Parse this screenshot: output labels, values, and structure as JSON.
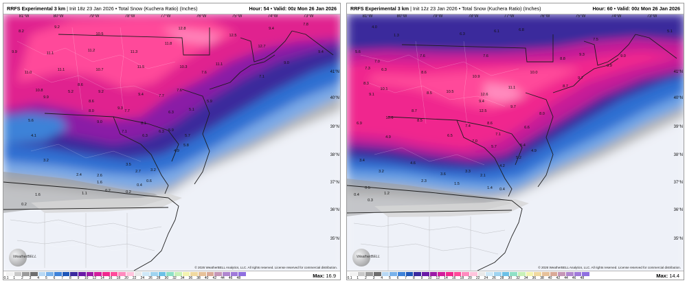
{
  "colorbar": {
    "values": [
      "0.1",
      "1",
      "2",
      "3",
      "4",
      "5",
      "6",
      "7",
      "8",
      "9",
      "10",
      "12",
      "14",
      "16",
      "18",
      "20",
      "22",
      "24",
      "26",
      "28",
      "30",
      "32",
      "34",
      "36",
      "38",
      "40",
      "42",
      "44",
      "46",
      "48"
    ],
    "colors": [
      "#f2f2f2",
      "#c8c8c8",
      "#9b9b9b",
      "#6e6e6e",
      "#b8d8f4",
      "#79b2ea",
      "#3e82d8",
      "#1e56b8",
      "#3b2a9e",
      "#6a1aa6",
      "#9b1ba6",
      "#d21e9c",
      "#f0288e",
      "#ff4a9a",
      "#ff8bbe",
      "#ffc4dc",
      "#e9e9e9",
      "#cfe8f7",
      "#9fd3ef",
      "#6cc0e6",
      "#8fe0c6",
      "#c8f0b8",
      "#f3f3b0",
      "#f0d9a0",
      "#e6c19a",
      "#d9aa98",
      "#c597b7",
      "#b087cf",
      "#a07ad9",
      "#8f6fe0"
    ]
  },
  "panels": [
    {
      "title_bold": "RRFS Experimental 3 km",
      "title_rest": " | Init 18z 23 Jan 2026 • Total Snow (Kuchera Ratio) (Inches)",
      "hour_label": "Hour: 54",
      "valid_label": "Valid: 00z Mon 26 Jan 2026",
      "max_label": "Max:",
      "max_value": "16.9",
      "copyright": "© 2026 WeatherBELL Analytics, LLC. All rights reserved. License reserved for commercial distribution.",
      "logo": "WeatherBELL",
      "lats": [
        "41°N",
        "40°N",
        "39°N",
        "38°N",
        "37°N",
        "36°N",
        "35°N"
      ],
      "lons": [
        "81°W",
        "80°W",
        "79°W",
        "78°W",
        "77°W",
        "76°W",
        "75°W",
        "74°W",
        "73°W"
      ],
      "values": [
        {
          "t": "8.2"
        },
        {
          "t": "9.2"
        },
        {
          "t": "10.5"
        },
        {
          "t": "12.8"
        },
        {
          "t": "12.5"
        },
        {
          "t": "9.4"
        },
        {
          "t": "7.8"
        },
        {
          "t": "9.9"
        },
        {
          "t": "11.1"
        },
        {
          "t": "11.2"
        },
        {
          "t": "11.3"
        },
        {
          "t": "11.8"
        },
        {
          "t": "12.7"
        },
        {
          "t": "9.4"
        },
        {
          "t": "11.0"
        },
        {
          "t": "11.1"
        },
        {
          "t": "10.7"
        },
        {
          "t": "11.5"
        },
        {
          "t": "10.3"
        },
        {
          "t": "11.1"
        },
        {
          "t": "9.0"
        },
        {
          "t": "10.8"
        },
        {
          "t": "9.2"
        },
        {
          "t": "9.4"
        },
        {
          "t": "8.6"
        },
        {
          "t": "7.7"
        },
        {
          "t": "7.6"
        },
        {
          "t": "7.1"
        },
        {
          "t": "9.9"
        },
        {
          "t": "7.7"
        },
        {
          "t": "5.2"
        },
        {
          "t": "8.6"
        },
        {
          "t": "7.6"
        },
        {
          "t": "6.3"
        },
        {
          "t": "5.9"
        },
        {
          "t": "5.6"
        },
        {
          "t": "8.0"
        },
        {
          "t": "9.3"
        },
        {
          "t": "8.1"
        },
        {
          "t": "6.3"
        },
        {
          "t": "5.1"
        },
        {
          "t": "5.7"
        },
        {
          "t": "4.1"
        },
        {
          "t": "9.0"
        },
        {
          "t": "7.1"
        },
        {
          "t": "6.3"
        },
        {
          "t": "5.9"
        },
        {
          "t": "5.8"
        },
        {
          "t": "3.2"
        },
        {
          "t": "2.6"
        },
        {
          "t": "3.5"
        },
        {
          "t": "2.7"
        },
        {
          "t": "3.2"
        },
        {
          "t": "4.9"
        },
        {
          "t": "2.4"
        },
        {
          "t": "1.6"
        },
        {
          "t": "0.4"
        },
        {
          "t": "0.6"
        },
        {
          "t": "0.2"
        },
        {
          "t": "0.2"
        },
        {
          "t": "0.2"
        },
        {
          "t": "1.6"
        },
        {
          "t": "1.1"
        }
      ]
    },
    {
      "title_bold": "RRFS Experimental 3 km",
      "title_rest": " | Init 12z 23 Jan 2026 • Total Snow (Kuchera Ratio) (Inches)",
      "hour_label": "Hour: 60",
      "valid_label": "Valid: 00z Mon 26 Jan 2026",
      "max_label": "Max:",
      "max_value": "14.4",
      "copyright": "© 2026 WeatherBELL Analytics, LLC. All rights reserved. License reserved for commercial distribution.",
      "logo": "WeatherBELL",
      "lats": [
        "41°N",
        "40°N",
        "39°N",
        "38°N",
        "37°N",
        "36°N",
        "35°N"
      ],
      "lons": [
        "81°W",
        "80°W",
        "79°W",
        "78°W",
        "77°W",
        "76°W",
        "75°W",
        "74°W",
        "73°W"
      ],
      "values": [
        {
          "t": "4.0"
        },
        {
          "t": "1.3"
        },
        {
          "t": "6.3"
        },
        {
          "t": "6.1"
        },
        {
          "t": "6.8"
        },
        {
          "t": "7.5"
        },
        {
          "t": "5.1"
        },
        {
          "t": "5.6"
        },
        {
          "t": "7.0"
        },
        {
          "t": "7.6"
        },
        {
          "t": "7.6"
        },
        {
          "t": "8.8"
        },
        {
          "t": "9.3"
        },
        {
          "t": "9.0"
        },
        {
          "t": "7.3"
        },
        {
          "t": "6.3"
        },
        {
          "t": "8.6"
        },
        {
          "t": "10.9"
        },
        {
          "t": "10.0"
        },
        {
          "t": "9.7"
        },
        {
          "t": "9.9"
        },
        {
          "t": "8.3"
        },
        {
          "t": "10.1"
        },
        {
          "t": "8.5"
        },
        {
          "t": "10.5"
        },
        {
          "t": "12.6"
        },
        {
          "t": "11.1"
        },
        {
          "t": "8.7"
        },
        {
          "t": "9.1"
        },
        {
          "t": "8.7"
        },
        {
          "t": "10.6"
        },
        {
          "t": "9.4"
        },
        {
          "t": "12.5"
        },
        {
          "t": "9.7"
        },
        {
          "t": "8.0"
        },
        {
          "t": "6.9"
        },
        {
          "t": "8.5"
        },
        {
          "t": "7.4"
        },
        {
          "t": "8.6"
        },
        {
          "t": "7.1"
        },
        {
          "t": "6.6"
        },
        {
          "t": "5.4"
        },
        {
          "t": "4.9"
        },
        {
          "t": "6.5"
        },
        {
          "t": "7.0"
        },
        {
          "t": "5.7"
        },
        {
          "t": "5.2"
        },
        {
          "t": "4.9"
        },
        {
          "t": "3.4"
        },
        {
          "t": "4.6"
        },
        {
          "t": "3.6"
        },
        {
          "t": "3.3"
        },
        {
          "t": "2.1"
        },
        {
          "t": "4.2"
        },
        {
          "t": "3.2"
        },
        {
          "t": "2.3"
        },
        {
          "t": "0.5"
        },
        {
          "t": "1.5"
        },
        {
          "t": "1.4"
        },
        {
          "t": "0.4"
        },
        {
          "t": "0.4"
        },
        {
          "t": "0.3"
        },
        {
          "t": "1.2"
        }
      ]
    }
  ]
}
